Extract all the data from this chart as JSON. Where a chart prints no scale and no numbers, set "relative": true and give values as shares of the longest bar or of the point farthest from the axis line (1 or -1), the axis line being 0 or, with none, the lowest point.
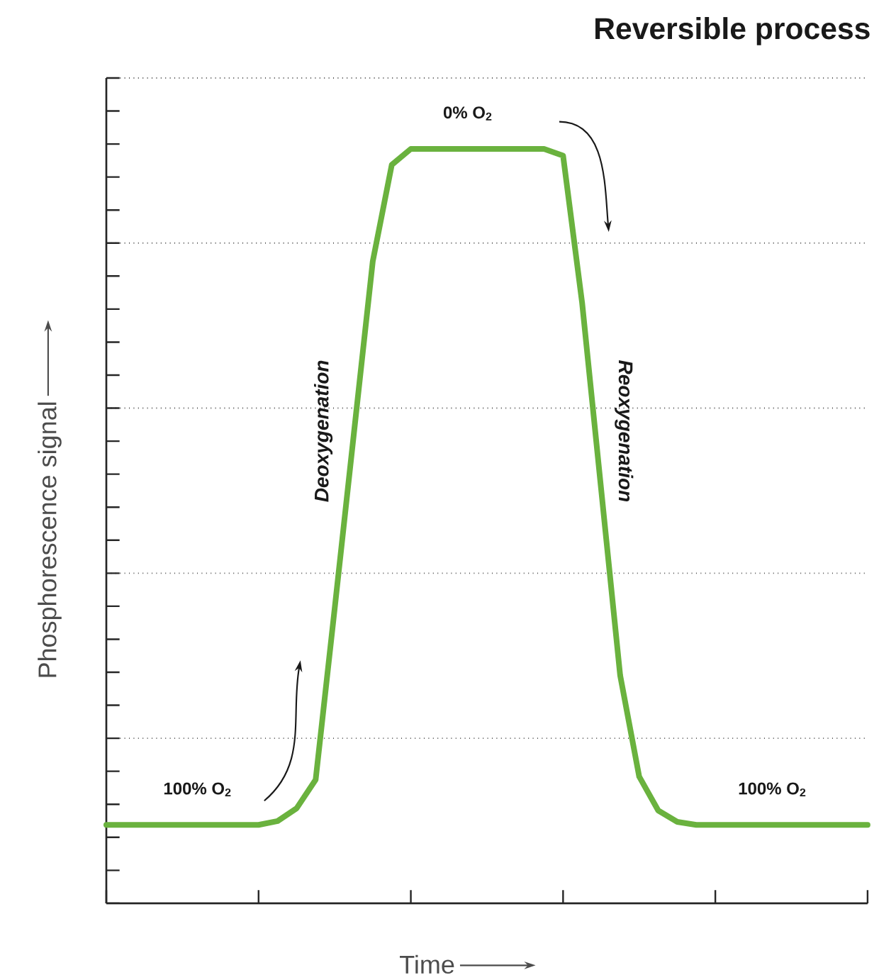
{
  "chart_data": {
    "type": "line",
    "title": "Reversible process",
    "xlabel": "Time",
    "ylabel": "Phosphorescence signal",
    "relative": true,
    "grid": "y",
    "tick_labels": false,
    "categories": [
      null,
      null,
      null,
      null,
      null,
      null,
      null,
      null,
      null,
      null,
      null,
      null,
      null,
      null,
      null,
      null,
      null,
      null,
      null,
      null,
      null,
      null,
      null,
      null,
      null,
      null,
      null,
      null,
      null,
      null,
      null,
      null,
      null,
      null,
      null,
      null,
      null,
      null,
      null,
      null,
      null
    ],
    "values": [
      0.104,
      0.104,
      0.104,
      0.104,
      0.104,
      0.104,
      0.104,
      0.104,
      0.104,
      0.109,
      0.126,
      0.164,
      0.391,
      0.621,
      0.851,
      0.979,
      1,
      1,
      1,
      1,
      1,
      1,
      1,
      1,
      0.991,
      0.796,
      0.549,
      0.302,
      0.168,
      0.123,
      0.108,
      0.104,
      0.104,
      0.104,
      0.104,
      0.104,
      0.104,
      0.104,
      0.104,
      0.104,
      0.104
    ],
    "color": "#6ab23e",
    "annotations": [
      "100% O$_{2}$",
      "0% O$_{2}$",
      "Deoxygenation",
      "Reoxygenation",
      "100% O$_{2}$"
    ]
  }
}
